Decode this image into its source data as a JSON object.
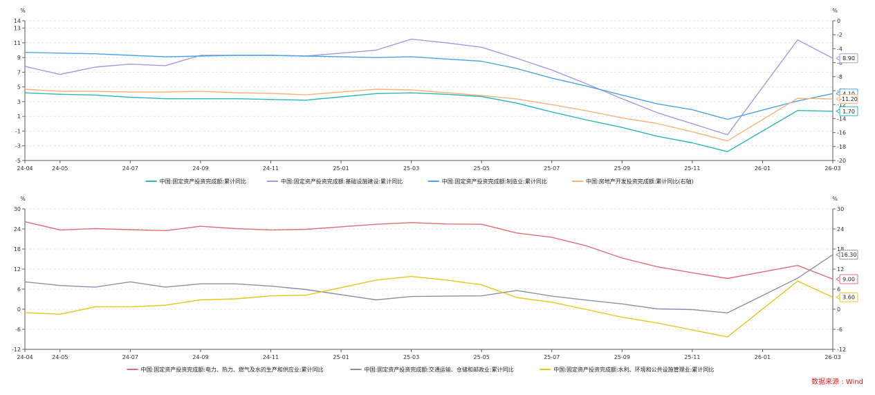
{
  "source_label": "数据来源 : Wind",
  "chart_data": [
    {
      "type": "line",
      "unit_left": "%",
      "unit_right": "%",
      "x": [
        "24-04",
        "24-05",
        "24-06",
        "24-07",
        "24-08",
        "24-09",
        "24-10",
        "24-11",
        "24-12",
        "25-01",
        "25-02",
        "25-03",
        "25-04",
        "25-05",
        "25-06",
        "25-07",
        "25-08",
        "25-09",
        "25-10",
        "25-11",
        "25-12",
        "26-01",
        "26-02",
        "26-03"
      ],
      "x_ticks": [
        "24-04",
        "24-05",
        "24-07",
        "24-09",
        "24-11",
        "25-01",
        "25-03",
        "25-05",
        "25-07",
        "25-09",
        "25-11",
        "26-01",
        "26-03"
      ],
      "ylim_left": [
        -5,
        14
      ],
      "yticks_left": [
        "-5",
        "-3",
        "-1",
        "1",
        "3",
        "5",
        "7",
        "9",
        "11",
        "13",
        "14"
      ],
      "ylim_right": [
        -20,
        0
      ],
      "yticks_right": [
        "-20",
        "-18",
        "-16",
        "-14",
        "-12",
        "-10",
        "-8",
        "-6",
        "-4",
        "-2",
        "0"
      ],
      "series": [
        {
          "name": "中国:固定资产投资完成额:累计同比",
          "color": "#29b7b9",
          "axis": "left",
          "values": [
            4.2,
            4.0,
            3.9,
            3.6,
            3.4,
            3.4,
            3.4,
            3.3,
            3.2,
            null,
            4.1,
            4.2,
            4.0,
            3.7,
            2.8,
            1.6,
            0.5,
            -0.5,
            -1.7,
            -2.6,
            -3.8,
            null,
            1.8,
            1.7
          ],
          "label": "1.70"
        },
        {
          "name": "中国:固定资产投资完成额:基础设施建设:累计同比",
          "color": "#a59adf",
          "axis": "left",
          "values": [
            7.8,
            6.7,
            7.7,
            8.1,
            7.9,
            9.3,
            9.3,
            9.3,
            9.2,
            null,
            10.0,
            11.5,
            11.0,
            10.4,
            8.9,
            7.3,
            5.4,
            3.4,
            1.5,
            0.0,
            -1.5,
            null,
            11.4,
            8.9
          ],
          "label": "8.90"
        },
        {
          "name": "中国:固定资产投资完成额:制造业:累计同比",
          "color": "#4aa3e8",
          "axis": "left",
          "values": [
            9.7,
            9.6,
            9.5,
            9.3,
            9.1,
            9.2,
            9.3,
            9.3,
            9.2,
            null,
            9.0,
            9.1,
            8.8,
            8.5,
            7.5,
            6.2,
            5.1,
            3.9,
            2.7,
            1.9,
            0.6,
            null,
            3.1,
            4.1
          ],
          "label": "4.10"
        },
        {
          "name": "中国:房地产开发投资完成额:累计同比(右轴)",
          "color": "#fab27b",
          "axis": "right",
          "values": [
            -9.8,
            -10.1,
            -10.1,
            -10.2,
            -10.2,
            -10.1,
            -10.3,
            -10.4,
            -10.6,
            null,
            -9.8,
            -9.9,
            -10.3,
            -10.7,
            -11.2,
            -12.0,
            -12.9,
            -13.9,
            -14.7,
            -15.9,
            -17.2,
            null,
            -11.1,
            -11.2
          ],
          "label": "-11.20"
        }
      ]
    },
    {
      "type": "line",
      "unit_left": "%",
      "unit_right": "%",
      "x": [
        "24-04",
        "24-05",
        "24-06",
        "24-07",
        "24-08",
        "24-09",
        "24-10",
        "24-11",
        "24-12",
        "25-01",
        "25-02",
        "25-03",
        "25-04",
        "25-05",
        "25-06",
        "25-07",
        "25-08",
        "25-09",
        "25-10",
        "25-11",
        "25-12",
        "26-01",
        "26-02",
        "26-03"
      ],
      "x_ticks": [
        "24-04",
        "24-05",
        "24-07",
        "24-09",
        "24-11",
        "25-01",
        "25-03",
        "25-05",
        "25-07",
        "25-09",
        "25-11",
        "26-01",
        "26-03"
      ],
      "ylim_left": [
        -12,
        30
      ],
      "yticks_left": [
        "-12",
        "-6",
        "0",
        "6",
        "12",
        "18",
        "24",
        "30"
      ],
      "ylim_right": [
        -12,
        30
      ],
      "yticks_right": [
        "-12",
        "-6",
        "0",
        "6",
        "12",
        "18",
        "24",
        "30"
      ],
      "series": [
        {
          "name": "中国:固定资产投资完成额:电力、热力、燃气及水的生产和供应业:累计同比",
          "color": "#e06c75",
          "axis": "left",
          "values": [
            26.2,
            23.7,
            24.1,
            23.8,
            23.5,
            24.8,
            24.1,
            23.7,
            23.9,
            null,
            25.4,
            25.9,
            25.5,
            25.4,
            22.8,
            21.5,
            18.9,
            15.3,
            12.7,
            10.9,
            9.2,
            null,
            13.1,
            9.0
          ],
          "label": "9.00"
        },
        {
          "name": "中国:固定资产投资完成额:交通运输、仓储和邮政业:累计同比",
          "color": "#8a90aa",
          "axis": "left",
          "values": [
            8.2,
            7.1,
            6.6,
            8.2,
            6.6,
            7.6,
            7.6,
            6.9,
            5.9,
            null,
            2.8,
            3.8,
            3.9,
            4.0,
            5.6,
            3.9,
            2.7,
            1.6,
            0.1,
            -0.1,
            -1.1,
            null,
            9.3,
            16.3
          ],
          "label": "16.30"
        },
        {
          "name": "中国:固定资产投资完成额:水利、环境和公共设施管理业:累计同比",
          "color": "#e8c619",
          "axis": "left",
          "values": [
            -1.0,
            -1.5,
            0.7,
            0.7,
            1.2,
            2.8,
            3.1,
            4.0,
            4.2,
            null,
            8.7,
            9.8,
            8.7,
            7.3,
            3.5,
            2.1,
            -0.1,
            -2.4,
            -4.1,
            -6.2,
            -8.3,
            null,
            8.4,
            3.6
          ],
          "label": "3.60"
        }
      ]
    }
  ]
}
